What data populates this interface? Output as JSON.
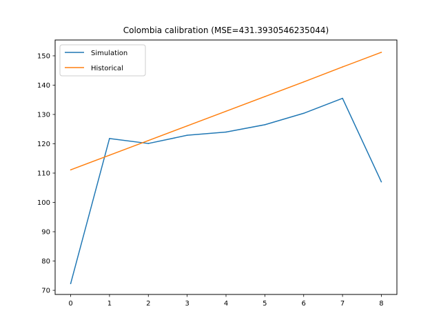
{
  "chart_data": {
    "type": "line",
    "title": "Colombia calibration (MSE=431.3930546235044)",
    "xlabel": "",
    "ylabel": "",
    "x": [
      0,
      1,
      2,
      3,
      4,
      5,
      6,
      7,
      8
    ],
    "xlim": [
      -0.4,
      8.4
    ],
    "ylim": [
      68.6,
      155.4
    ],
    "xticks": [
      0,
      1,
      2,
      3,
      4,
      5,
      6,
      7,
      8
    ],
    "yticks": [
      70,
      80,
      90,
      100,
      110,
      120,
      130,
      140,
      150
    ],
    "grid": false,
    "legend_position": "upper-left",
    "series": [
      {
        "name": "Simulation",
        "color": "#1f77b4",
        "values": [
          72.3,
          121.8,
          120.1,
          122.9,
          124.0,
          126.5,
          130.4,
          135.5,
          107.0
        ]
      },
      {
        "name": "Historical",
        "color": "#ff7f0e",
        "values": [
          111.1,
          116.1,
          121.1,
          126.1,
          131.1,
          136.1,
          141.1,
          146.2,
          151.2
        ]
      }
    ]
  }
}
